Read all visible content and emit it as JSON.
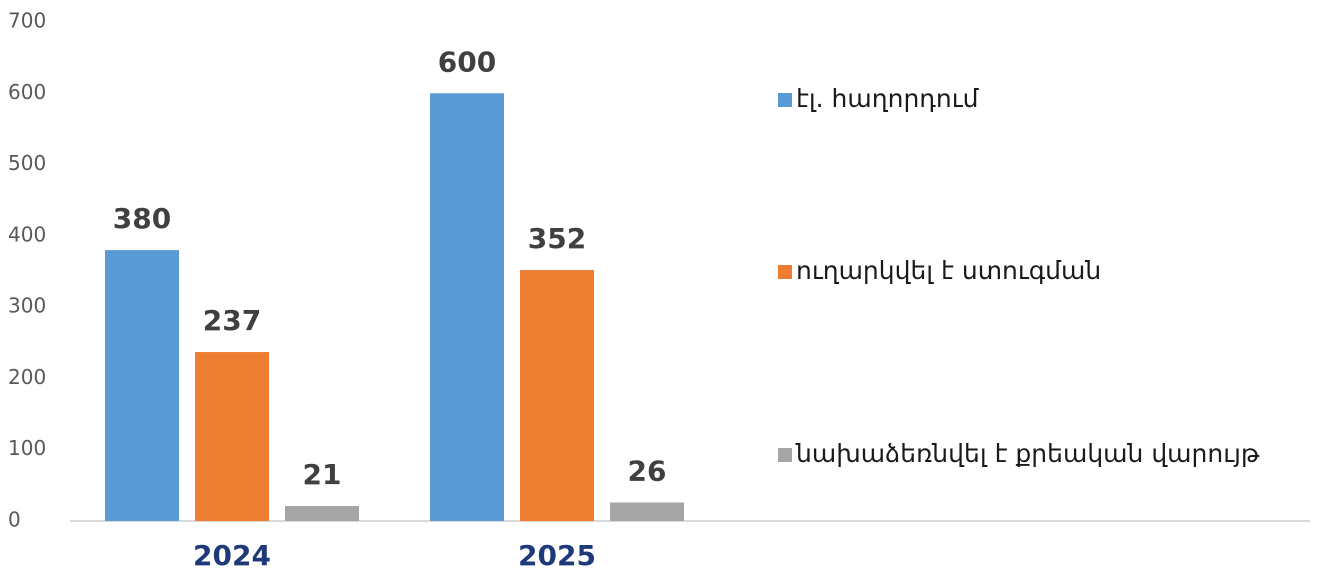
{
  "chart_data": {
    "type": "bar",
    "categories": [
      "2024",
      "2025"
    ],
    "series": [
      {
        "name": "էլ. հաղորդում",
        "color": "#5b9bd5",
        "values": [
          380,
          600
        ]
      },
      {
        "name": "ուղարկվել է ստուգման",
        "color": "#ed7d31",
        "values": [
          237,
          352
        ]
      },
      {
        "name": "նախաձեռնվել է քրեական վարույթ",
        "color": "#a5a5a5",
        "values": [
          21,
          26
        ]
      }
    ],
    "ylim": [
      0,
      700
    ],
    "yticks": [
      0,
      100,
      200,
      300,
      400,
      500,
      600,
      700
    ],
    "grid": false,
    "legend": "right"
  }
}
